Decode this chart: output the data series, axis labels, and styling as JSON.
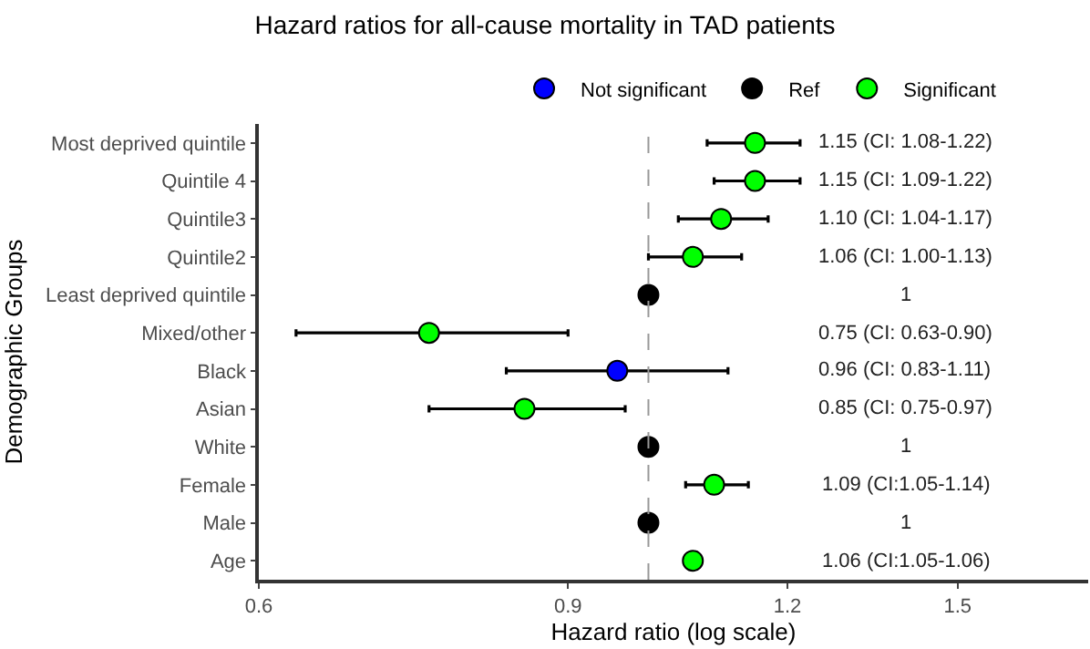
{
  "chart_data": {
    "type": "scatter",
    "orientation": "horizontal",
    "title": "Hazard ratios for all-cause mortality in TAD patients",
    "xlabel": "Hazard ratio (log scale)",
    "ylabel": "Demographic Groups",
    "categories": [
      "Most deprived quintile",
      "Quintile 4",
      "Quintile3",
      "Quintile2",
      "Least deprived quintile",
      "Mixed/other",
      "Black",
      "Asian",
      "White",
      "Female",
      "Male",
      "Age"
    ],
    "series": [
      {
        "name": "Not significant",
        "color": "#0000ff",
        "values": [
          null,
          null,
          null,
          null,
          null,
          null,
          0.96,
          null,
          null,
          null,
          null,
          null
        ],
        "errors": [
          null,
          null,
          null,
          null,
          null,
          null,
          [
            0.83,
            1.11
          ],
          null,
          null,
          null,
          null,
          null
        ]
      },
      {
        "name": "Ref",
        "color": "#000000",
        "values": [
          null,
          null,
          null,
          null,
          1,
          null,
          null,
          null,
          1,
          null,
          1,
          null
        ]
      },
      {
        "name": "Significant",
        "color": "#00ff00",
        "values": [
          1.15,
          1.15,
          1.1,
          1.06,
          null,
          0.75,
          null,
          0.85,
          null,
          1.09,
          null,
          1.06
        ],
        "errors": [
          [
            1.08,
            1.22
          ],
          [
            1.09,
            1.22
          ],
          [
            1.04,
            1.17
          ],
          [
            1.0,
            1.13
          ],
          null,
          [
            0.63,
            0.9
          ],
          null,
          [
            0.75,
            0.97
          ],
          null,
          [
            1.05,
            1.14
          ],
          null,
          [
            1.05,
            1.06
          ]
        ]
      }
    ],
    "annotations": [
      "1.15 (CI: 1.08-1.22)",
      "1.15 (CI: 1.09-1.22)",
      "1.10 (CI: 1.04-1.17)",
      "1.06 (CI: 1.00-1.13)",
      "1",
      "0.75 (CI: 0.63-0.90)",
      "0.96 (CI: 0.83-1.11)",
      "0.85 (CI: 0.75-0.97)",
      "1",
      "1.09 (CI:1.05-1.14)",
      "1",
      "1.06 (CI:1.05-1.06)"
    ],
    "log": "x",
    "xlim": [
      0.6,
      1.78
    ],
    "xticks": [
      0.6,
      0.9,
      1.2,
      1.5
    ],
    "ref_lines": [
      {
        "axis": "x",
        "value": 1,
        "color": "#999999",
        "line_style": "dashed"
      }
    ],
    "marker": "circle",
    "legend": "top"
  }
}
